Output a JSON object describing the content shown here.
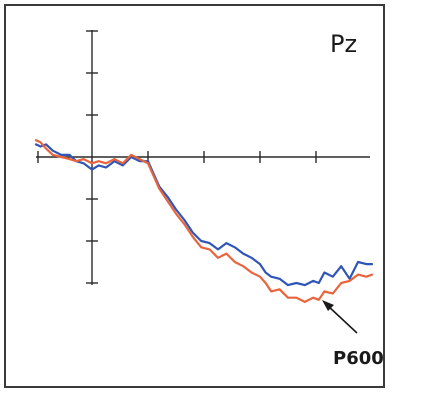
{
  "chart_data": {
    "type": "line",
    "title": "",
    "electrode_label": "Pz",
    "xlabel": "",
    "ylabel": "",
    "grid": false,
    "legend": "none",
    "x_ticks": 5,
    "y_ticks_above": 3,
    "y_ticks_below": 3,
    "annotation": {
      "text": "P600",
      "arrow": true
    },
    "series": [
      {
        "color": "#2f55b7",
        "x": [
          -1.0,
          -0.92,
          -0.82,
          -0.7,
          -0.55,
          -0.4,
          -0.28,
          -0.15,
          0.0,
          0.12,
          0.25,
          0.4,
          0.55,
          0.7,
          0.85,
          1.0,
          1.1,
          1.2,
          1.35,
          1.5,
          1.65,
          1.8,
          1.95,
          2.1,
          2.25,
          2.4,
          2.55,
          2.7,
          2.85,
          3.0,
          3.1,
          3.2,
          3.35,
          3.5,
          3.65,
          3.8,
          3.95,
          4.05,
          4.15,
          4.3,
          4.45,
          4.6,
          4.75,
          4.9,
          5.0
        ],
        "values": [
          0.3,
          0.25,
          0.3,
          0.15,
          0.05,
          0.05,
          -0.1,
          -0.15,
          -0.3,
          -0.2,
          -0.25,
          -0.1,
          -0.2,
          0.0,
          -0.1,
          -0.1,
          -0.4,
          -0.7,
          -0.95,
          -1.25,
          -1.5,
          -1.8,
          -2.0,
          -2.05,
          -2.2,
          -2.05,
          -2.15,
          -2.3,
          -2.4,
          -2.55,
          -2.75,
          -2.85,
          -2.9,
          -3.05,
          -3.0,
          -3.05,
          -2.95,
          -3.0,
          -2.75,
          -2.85,
          -2.6,
          -2.9,
          -2.5,
          -2.55,
          -2.55
        ]
      },
      {
        "color": "#e8643c",
        "x": [
          -1.0,
          -0.92,
          -0.82,
          -0.7,
          -0.55,
          -0.4,
          -0.28,
          -0.15,
          0.0,
          0.12,
          0.25,
          0.4,
          0.55,
          0.7,
          0.85,
          1.0,
          1.1,
          1.2,
          1.35,
          1.5,
          1.65,
          1.8,
          1.95,
          2.1,
          2.25,
          2.4,
          2.55,
          2.7,
          2.85,
          3.0,
          3.1,
          3.2,
          3.35,
          3.5,
          3.65,
          3.8,
          3.95,
          4.05,
          4.15,
          4.3,
          4.45,
          4.6,
          4.75,
          4.9,
          5.0
        ],
        "values": [
          0.4,
          0.35,
          0.2,
          0.05,
          0.0,
          -0.05,
          -0.1,
          -0.05,
          -0.15,
          -0.1,
          -0.15,
          -0.05,
          -0.15,
          0.05,
          -0.05,
          -0.15,
          -0.45,
          -0.75,
          -1.05,
          -1.35,
          -1.6,
          -1.9,
          -2.15,
          -2.2,
          -2.4,
          -2.3,
          -2.5,
          -2.6,
          -2.75,
          -2.85,
          -3.0,
          -3.2,
          -3.15,
          -3.35,
          -3.35,
          -3.45,
          -3.35,
          -3.4,
          -3.2,
          -3.25,
          -3.0,
          -2.95,
          -2.8,
          -2.85,
          -2.8
        ]
      }
    ]
  }
}
